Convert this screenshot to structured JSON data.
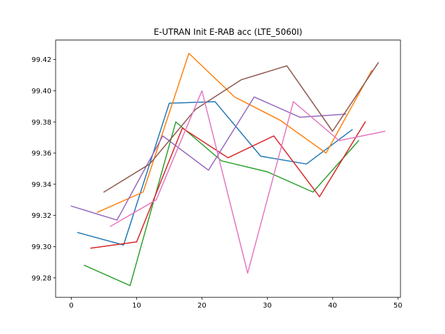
{
  "chart_data": {
    "type": "line",
    "title": "E-UTRAN Init E-RAB acc (LTE_5060I)",
    "xlabel": "",
    "ylabel": "",
    "xlim": [
      -2.4,
      50.4
    ],
    "ylim": [
      99.2675,
      99.4325
    ],
    "xticks": [
      0,
      10,
      20,
      30,
      40,
      50
    ],
    "yticks": [
      99.28,
      99.3,
      99.32,
      99.34,
      99.36,
      99.38,
      99.4,
      99.42
    ],
    "ytick_labels": [
      "99.28",
      "99.30",
      "99.32",
      "99.34",
      "99.36",
      "99.38",
      "99.40",
      "99.42"
    ],
    "grid": false,
    "series": [
      {
        "color": "#1f77b4",
        "x": [
          1,
          8,
          15,
          22,
          29,
          36,
          43
        ],
        "y": [
          99.309,
          99.301,
          99.392,
          99.393,
          99.358,
          99.353,
          99.375
        ]
      },
      {
        "color": "#ff7f0e",
        "x": [
          4,
          11,
          18,
          25,
          32,
          39,
          46
        ],
        "y": [
          99.322,
          99.335,
          99.424,
          99.396,
          99.381,
          99.36,
          99.413
        ]
      },
      {
        "color": "#2ca02c",
        "x": [
          2,
          9,
          16,
          23,
          30,
          37,
          44
        ],
        "y": [
          99.288,
          99.275,
          99.38,
          99.355,
          99.348,
          99.335,
          99.368
        ]
      },
      {
        "color": "#d62728",
        "x": [
          3,
          10,
          17,
          24,
          31,
          38,
          45
        ],
        "y": [
          99.299,
          99.303,
          99.376,
          99.357,
          99.371,
          99.332,
          99.38
        ]
      },
      {
        "color": "#9467bd",
        "x": [
          0,
          7,
          14,
          21,
          28,
          35,
          42
        ],
        "y": [
          99.326,
          99.317,
          99.371,
          99.349,
          99.396,
          99.383,
          99.385
        ]
      },
      {
        "color": "#8c564b",
        "x": [
          5,
          12,
          19,
          26,
          33,
          40,
          47
        ],
        "y": [
          99.335,
          99.353,
          99.388,
          99.407,
          99.416,
          99.374,
          99.418
        ]
      },
      {
        "color": "#e377c2",
        "x": [
          6,
          13,
          20,
          27,
          34,
          41,
          48
        ],
        "y": [
          99.313,
          99.33,
          99.4,
          99.283,
          99.393,
          99.368,
          99.374
        ]
      }
    ]
  }
}
